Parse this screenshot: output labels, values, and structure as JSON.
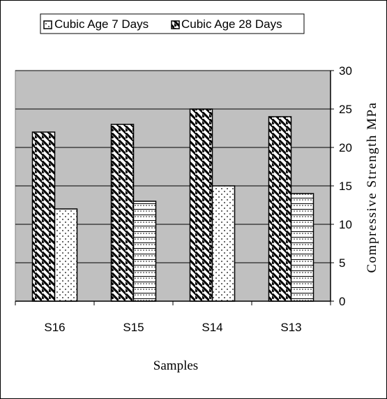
{
  "chart_data": {
    "type": "bar",
    "categories": [
      "S16",
      "S15",
      "S14",
      "S13"
    ],
    "series": [
      {
        "name": "Cubic Age 7 Days",
        "values": [
          22,
          23,
          25,
          24
        ]
      },
      {
        "name": "Cubic Age 28 Days",
        "values": [
          12,
          13,
          15,
          14
        ]
      }
    ],
    "xlabel": "Samples",
    "ylabel": "Compressive Strength MPa",
    "ylim": [
      0,
      30
    ],
    "yticks": [
      0,
      5,
      10,
      15,
      20,
      25,
      30
    ],
    "y_axis_side": "right",
    "grid": true,
    "legend": "top",
    "colors": {
      "plot_bg": "#c0c0c0",
      "bar_fill": "#ffffff",
      "stroke": "#000000"
    }
  }
}
